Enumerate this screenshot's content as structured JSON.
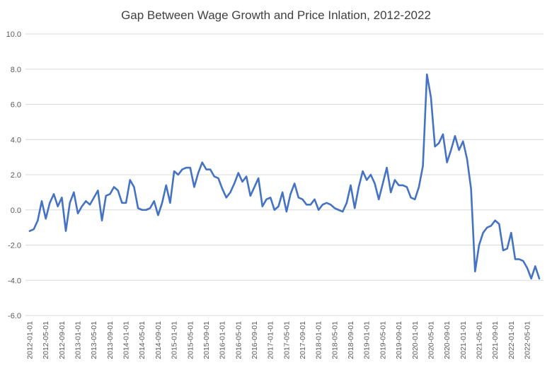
{
  "chart_data": {
    "type": "line",
    "title": "Gap Between Wage Growth and Price Inlation, 2012-2022",
    "xlabel": "",
    "ylabel": "",
    "ylim": [
      -6,
      10
    ],
    "yticks": [
      10,
      8,
      6,
      4,
      2,
      0,
      -2,
      -4,
      -6
    ],
    "ytick_labels": [
      "10.0",
      "8.0",
      "6.0",
      "4.0",
      "2.0",
      "0.0",
      "-2.0",
      "-4.0",
      "-6.0"
    ],
    "xtick_labels": [
      "2012-01-01",
      "2012-05-01",
      "2012-09-01",
      "2013-01-01",
      "2013-05-01",
      "2013-09-01",
      "2014-01-01",
      "2014-05-01",
      "2014-09-01",
      "2015-01-01",
      "2015-05-01",
      "2015-09-01",
      "2016-01-01",
      "2016-05-01",
      "2016-09-01",
      "2017-01-01",
      "2017-05-01",
      "2017-09-01",
      "2018-01-01",
      "2018-05-01",
      "2018-09-01",
      "2019-01-01",
      "2019-05-01",
      "2019-09-01",
      "2020-01-01",
      "2020-05-01",
      "2020-09-01",
      "2021-01-01",
      "2021-05-01",
      "2021-09-01",
      "2022-01-01",
      "2022-05-01"
    ],
    "grid": true,
    "legend": "none",
    "colors": {
      "line": "#4472c4",
      "grid": "#d9d9d9",
      "text": "#595959",
      "title": "#404040"
    },
    "series": [
      {
        "x_start": "2012-01",
        "frequency": "monthly",
        "values": [
          -1.2,
          -1.1,
          -0.6,
          0.5,
          -0.5,
          0.4,
          0.9,
          0.2,
          0.7,
          -1.2,
          0.4,
          1.0,
          -0.2,
          0.2,
          0.5,
          0.3,
          0.7,
          1.1,
          -0.6,
          0.8,
          0.9,
          1.3,
          1.1,
          0.4,
          0.4,
          1.7,
          1.3,
          0.1,
          0.0,
          0.0,
          0.1,
          0.5,
          -0.3,
          0.4,
          1.4,
          0.4,
          2.2,
          2.0,
          2.3,
          2.4,
          2.4,
          1.3,
          2.1,
          2.7,
          2.3,
          2.3,
          1.9,
          1.8,
          1.2,
          0.7,
          1.0,
          1.5,
          2.1,
          1.6,
          1.9,
          0.8,
          1.3,
          1.8,
          0.2,
          0.6,
          0.7,
          0.0,
          0.2,
          1.0,
          -0.1,
          0.9,
          1.5,
          0.7,
          0.6,
          0.3,
          0.3,
          0.6,
          0.0,
          0.3,
          0.4,
          0.3,
          0.1,
          0.0,
          -0.1,
          0.4,
          1.4,
          0.1,
          1.3,
          2.2,
          1.7,
          2.0,
          1.5,
          0.6,
          1.5,
          2.4,
          1.0,
          1.7,
          1.4,
          1.4,
          1.3,
          0.7,
          0.6,
          1.3,
          2.5,
          7.7,
          6.4,
          3.6,
          3.8,
          4.3,
          2.7,
          3.4,
          4.2,
          3.4,
          3.9,
          2.9,
          1.2,
          -3.5,
          -2.0,
          -1.3,
          -1.0,
          -0.9,
          -0.6,
          -0.8,
          -2.3,
          -2.2,
          -1.3,
          -2.8,
          -2.8,
          -2.9,
          -3.3,
          -3.9,
          -3.2,
          -3.9
        ]
      }
    ]
  }
}
